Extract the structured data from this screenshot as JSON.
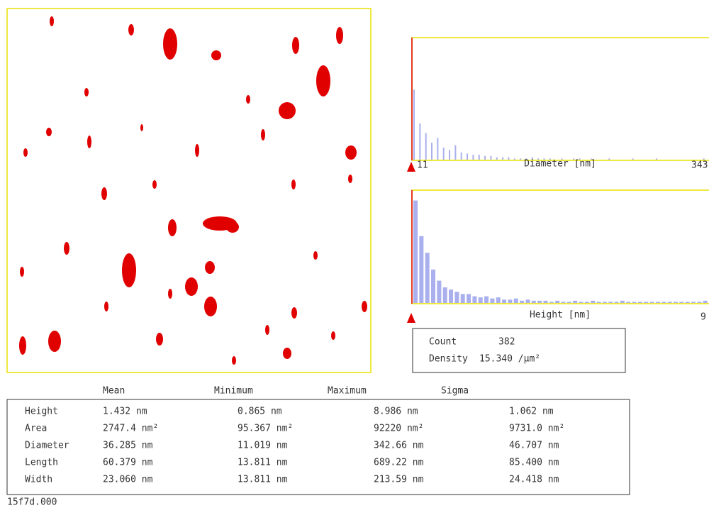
{
  "histograms": [
    {
      "axis_label": "Diameter [nm]",
      "min_label": "11",
      "max_label": "343",
      "values": [
        58,
        30,
        22,
        14,
        18,
        10,
        8,
        12,
        6,
        5,
        4,
        4,
        3,
        3,
        2,
        2,
        2,
        1,
        1,
        1,
        2,
        1,
        1,
        1,
        0,
        1,
        0,
        1,
        1,
        0,
        1,
        0,
        0,
        1,
        0,
        0,
        0,
        1,
        0,
        0,
        0,
        1,
        0,
        0,
        0,
        0,
        0,
        0,
        0,
        1
      ]
    },
    {
      "axis_label": "Height [nm]",
      "max_label": "9",
      "values": [
        92,
        60,
        45,
        30,
        20,
        14,
        12,
        10,
        8,
        8,
        6,
        5,
        6,
        4,
        5,
        3,
        3,
        4,
        2,
        3,
        2,
        2,
        2,
        1,
        2,
        1,
        1,
        2,
        1,
        1,
        2,
        1,
        1,
        1,
        1,
        2,
        1,
        1,
        1,
        1,
        1,
        1,
        1,
        1,
        1,
        1,
        1,
        1,
        1,
        2
      ]
    }
  ],
  "summary": {
    "rows": [
      [
        "Count",
        "382"
      ],
      [
        "Density",
        "15.340 /µm²"
      ]
    ]
  },
  "stats": {
    "columns": [
      "Mean",
      "Minimum",
      "Maximum",
      "Sigma"
    ],
    "rows": [
      [
        "Height",
        "1.432 nm",
        "0.865 nm",
        "8.986 nm",
        "1.062 nm"
      ],
      [
        "Area",
        "2747.4 nm²",
        "95.367 nm²",
        "92220 nm²",
        "9731.0 nm²"
      ],
      [
        "Diameter",
        "36.285 nm",
        "11.019 nm",
        "342.66 nm",
        "46.707 nm"
      ],
      [
        "Length",
        "60.379 nm",
        "13.811 nm",
        "689.22 nm",
        "85.400 nm"
      ],
      [
        "Width",
        "23.060 nm",
        "13.811 nm",
        "213.59 nm",
        "24.418 nm"
      ]
    ]
  },
  "footer": "15f7d.000"
}
